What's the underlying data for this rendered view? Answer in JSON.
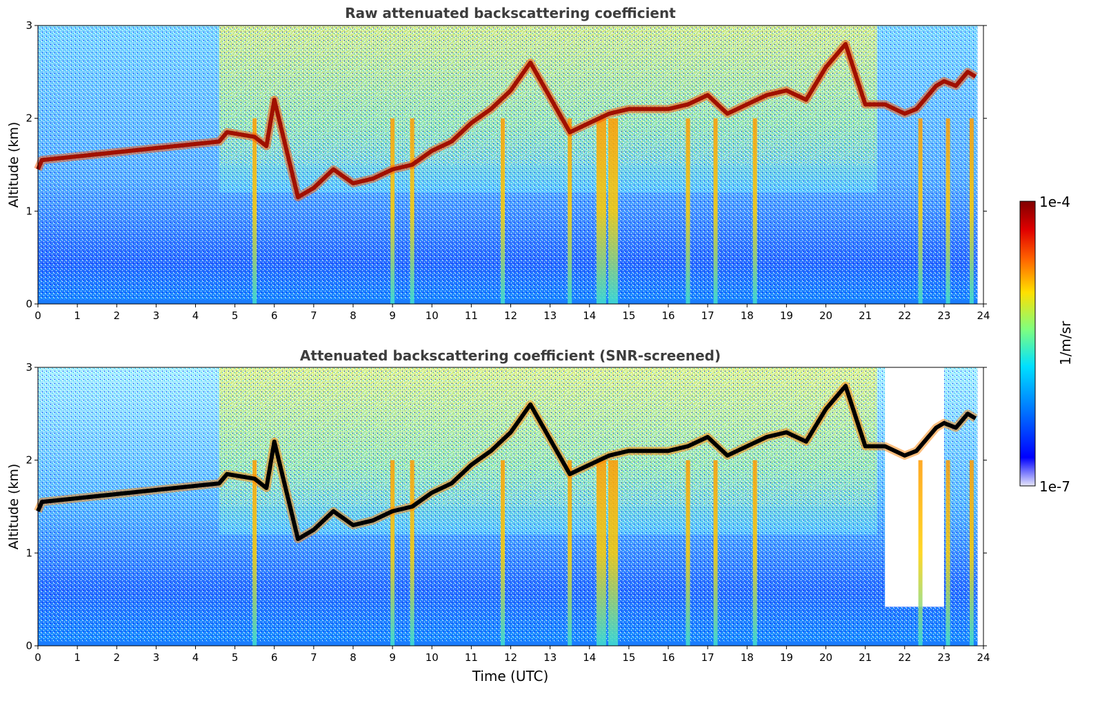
{
  "chart_data": [
    {
      "type": "heatmap",
      "title": "Raw attenuated backscattering coefficient",
      "xlabel": "",
      "ylabel": "Altitude (km)",
      "xlim": [
        0,
        24
      ],
      "ylim": [
        0,
        3
      ],
      "xticks": [
        "0",
        "1",
        "2",
        "3",
        "4",
        "5",
        "6",
        "7",
        "8",
        "9",
        "10",
        "11",
        "12",
        "13",
        "14",
        "15",
        "16",
        "17",
        "18",
        "19",
        "20",
        "21",
        "22",
        "23",
        "24"
      ],
      "yticks": [
        "0",
        "1",
        "2",
        "3"
      ],
      "cloud_layer": {
        "name": "cloud base",
        "x": [
          0,
          0.1,
          4.6,
          4.8,
          5.5,
          5.8,
          6.0,
          6.6,
          7.0,
          7.5,
          8.0,
          8.5,
          9.0,
          9.5,
          10.0,
          10.5,
          11.0,
          11.5,
          12.0,
          12.5,
          13.5,
          14.0,
          14.5,
          15.0,
          16.0,
          16.5,
          17.0,
          17.5,
          18.0,
          18.5,
          19.0,
          19.5,
          20.0,
          20.5,
          21.0,
          21.5,
          22.0,
          22.3,
          22.8,
          23.0,
          23.3,
          23.6,
          23.8
        ],
        "y": [
          1.45,
          1.55,
          1.75,
          1.85,
          1.8,
          1.7,
          2.2,
          1.15,
          1.25,
          1.45,
          1.3,
          1.35,
          1.45,
          1.5,
          1.65,
          1.75,
          1.95,
          2.1,
          2.3,
          2.6,
          1.85,
          1.95,
          2.05,
          2.1,
          2.1,
          2.15,
          2.25,
          2.05,
          2.15,
          2.25,
          2.3,
          2.2,
          2.55,
          2.8,
          2.15,
          2.15,
          2.05,
          2.1,
          2.35,
          2.4,
          2.35,
          2.5,
          2.45
        ]
      },
      "precip_shafts_x": [
        5.5,
        9.0,
        9.5,
        11.8,
        13.5,
        14.3,
        14.6,
        16.5,
        17.2,
        18.2,
        22.4,
        23.1,
        23.7
      ]
    },
    {
      "type": "heatmap",
      "title": "Attenuated backscattering coefficient (SNR-screened)",
      "xlabel": "Time (UTC)",
      "ylabel": "Altitude (km)",
      "xlim": [
        0,
        24
      ],
      "ylim": [
        0,
        3
      ],
      "xticks": [
        "0",
        "1",
        "2",
        "3",
        "4",
        "5",
        "6",
        "7",
        "8",
        "9",
        "10",
        "11",
        "12",
        "13",
        "14",
        "15",
        "16",
        "17",
        "18",
        "19",
        "20",
        "21",
        "22",
        "23",
        "24"
      ],
      "yticks": [
        "0",
        "1",
        "2",
        "3"
      ],
      "screened_region": {
        "x": [
          21.5,
          23.0
        ],
        "y_min": 0.42
      },
      "cloud_layer_color": "#000000"
    }
  ],
  "colorbar": {
    "label": "1/m/sr",
    "max_label": "1e-4",
    "min_label": "1e-7",
    "colors": [
      "#e6e6fa",
      "#0000ff",
      "#0080ff",
      "#00e0ff",
      "#7fff7f",
      "#ffe000",
      "#ff6000",
      "#e00000",
      "#800000"
    ]
  }
}
